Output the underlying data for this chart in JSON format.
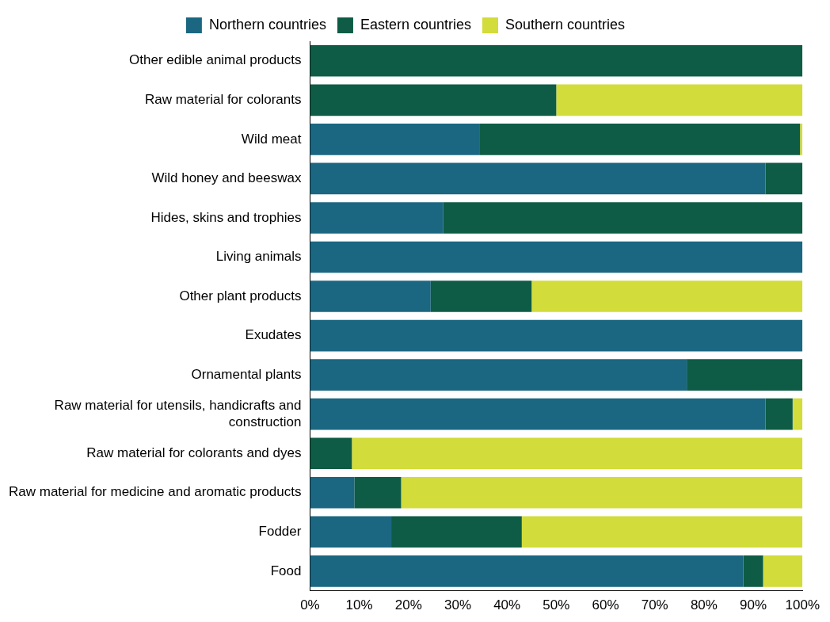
{
  "chart_data": {
    "type": "bar",
    "orientation": "horizontal",
    "stacked": true,
    "legend": "top",
    "grid": false,
    "categories": [
      "Other edible animal products",
      "Raw material for colorants",
      "Wild meat",
      "Wild honey and beeswax",
      "Hides, skins and trophies",
      "Living animals",
      "Other plant products",
      "Exudates",
      "Ornamental plants",
      "Raw material for utensils, handicrafts and construction",
      "Raw material for colorants and dyes",
      "Raw material for medicine and aromatic products",
      "Fodder",
      "Food"
    ],
    "series": [
      {
        "name": "Northern countries",
        "color": "#1b6781",
        "values": [
          0,
          0,
          34.5,
          92.5,
          27,
          100,
          24.5,
          100,
          76.5,
          92.5,
          0,
          9,
          16.5,
          88
        ]
      },
      {
        "name": "Eastern countries",
        "color": "#0e5c45",
        "values": [
          100,
          50,
          65,
          7.5,
          73,
          0,
          20.5,
          0,
          23.5,
          5.5,
          8.5,
          9.5,
          26.5,
          4
        ]
      },
      {
        "name": "Southern countries",
        "color": "#d2dc3a",
        "values": [
          0,
          50,
          0.5,
          0,
          0,
          0,
          55,
          0,
          0,
          2,
          91.5,
          81.5,
          57,
          8
        ]
      }
    ],
    "xlim": [
      0,
      100
    ],
    "xticks": [
      {
        "value": 0,
        "label": "0%"
      },
      {
        "value": 10,
        "label": "10%"
      },
      {
        "value": 20,
        "label": "20%"
      },
      {
        "value": 30,
        "label": "30%"
      },
      {
        "value": 40,
        "label": "40%"
      },
      {
        "value": 50,
        "label": "50%"
      },
      {
        "value": 60,
        "label": "60%"
      },
      {
        "value": 70,
        "label": "70%"
      },
      {
        "value": 80,
        "label": "80%"
      },
      {
        "value": 90,
        "label": "90%"
      },
      {
        "value": 100,
        "label": "100%"
      }
    ]
  }
}
